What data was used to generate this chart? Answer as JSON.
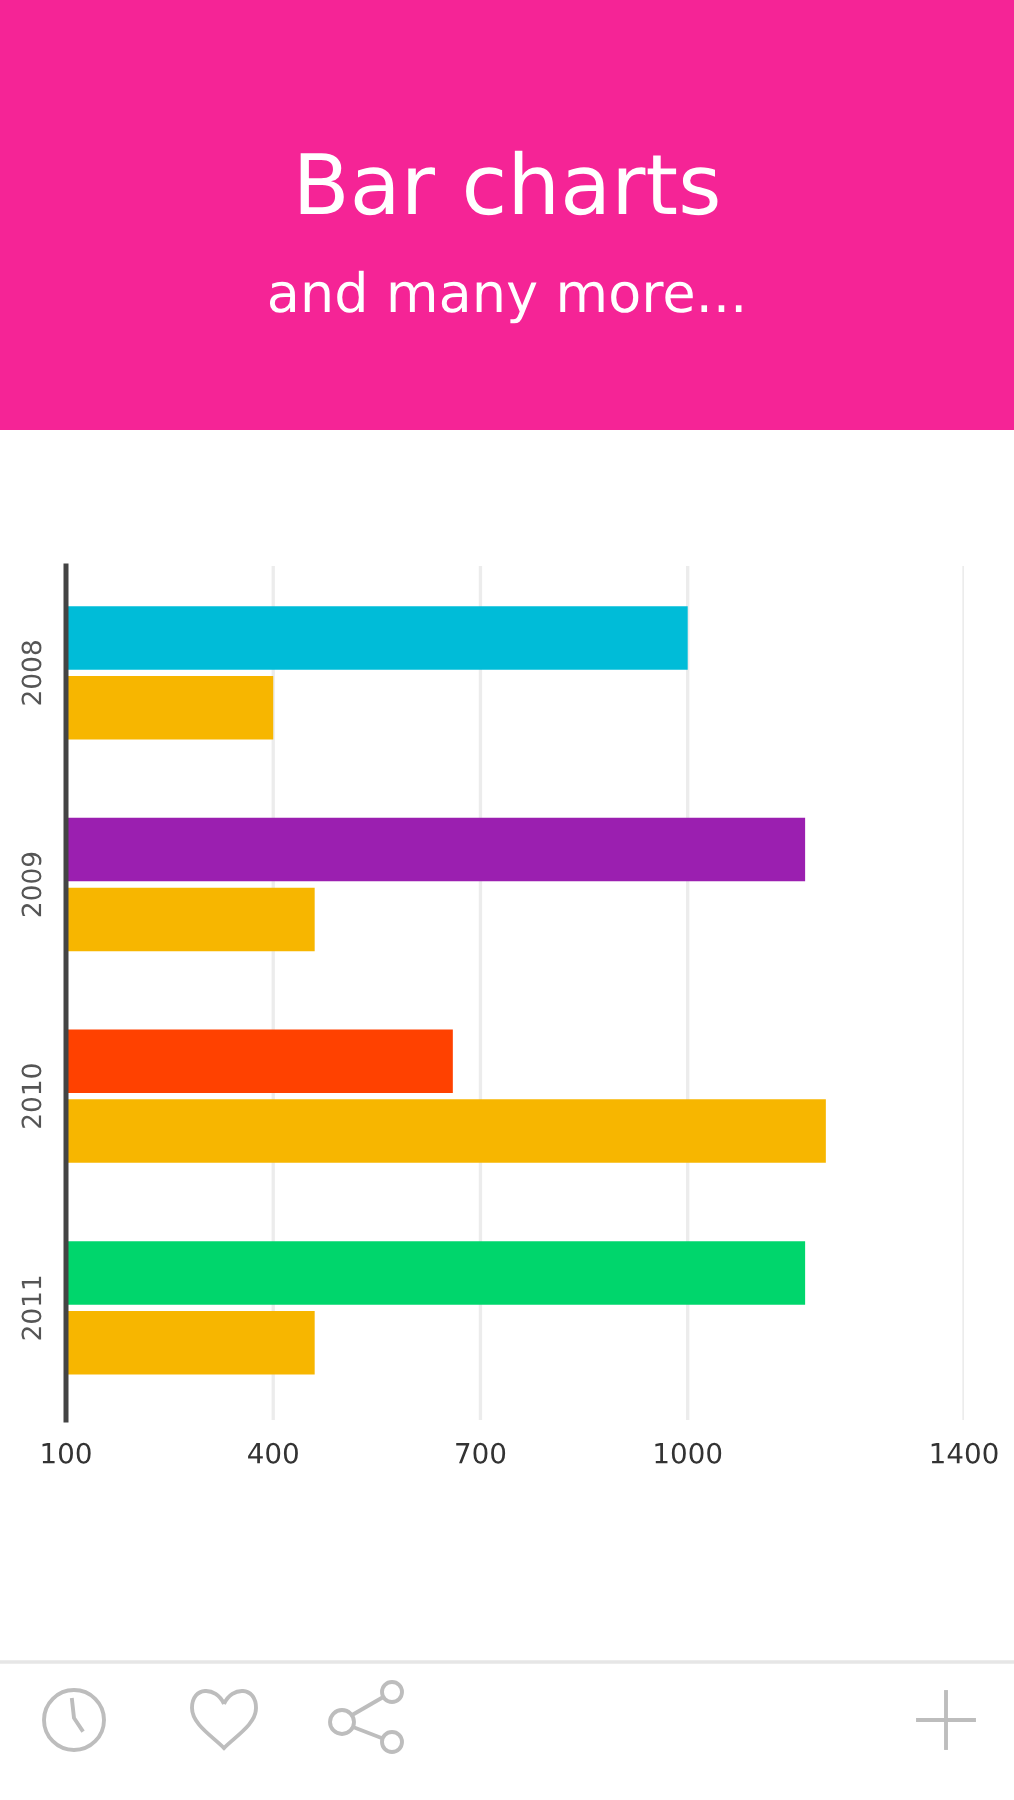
{
  "chart_data": {
    "type": "bar",
    "orientation": "horizontal",
    "title": "Bar charts",
    "subtitle": "and many more...",
    "categories": [
      "2008",
      "2009",
      "2010",
      "2011"
    ],
    "series": [
      {
        "colors": [
          "#00bcd8",
          "#9b1fb0",
          "#ff4100",
          "#00d66c"
        ],
        "values": [
          1000,
          1170,
          660,
          1170
        ]
      },
      {
        "color": "#f7b600",
        "values": [
          400,
          460,
          1200,
          460
        ]
      }
    ],
    "xlim": [
      100,
      1400
    ],
    "xticks": [
      100,
      400,
      700,
      1000,
      1400
    ],
    "grid": "x"
  }
}
